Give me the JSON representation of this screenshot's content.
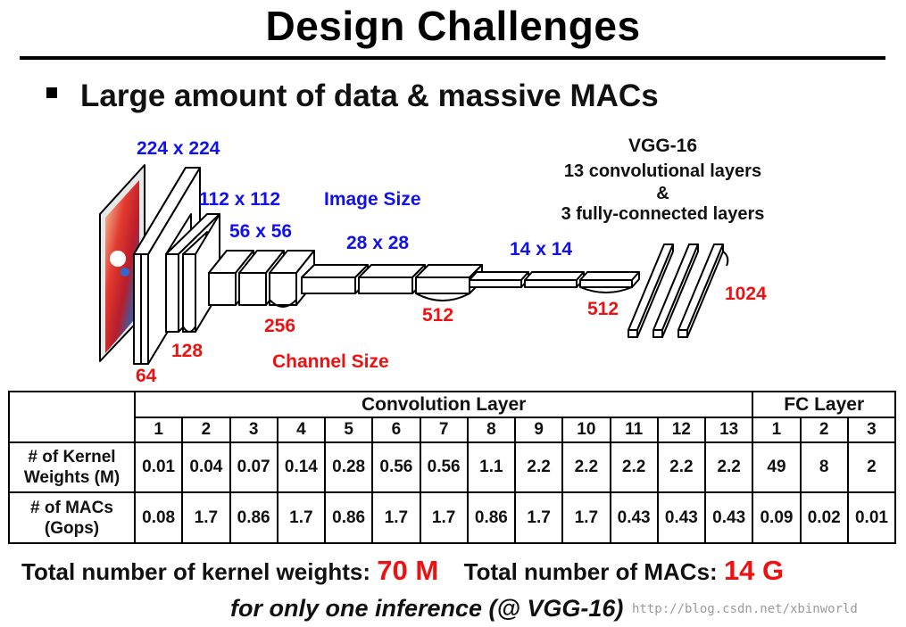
{
  "slide": {
    "title": "Design Challenges",
    "bullet": "Large amount of data & massive MACs"
  },
  "diagram": {
    "image_sizes": [
      "224 x 224",
      "112 x 112",
      "56 x 56",
      "28 x 28",
      "14 x 14"
    ],
    "image_size_label": "Image Size",
    "channel_sizes": [
      "64",
      "128",
      "256",
      "512",
      "512",
      "1024"
    ],
    "channel_size_label": "Channel Size",
    "network": {
      "name": "VGG-16",
      "line1": "13 convolutional layers",
      "line2": "&",
      "line3": "3 fully-connected layers"
    },
    "colors": {
      "image_size": "#1111ee",
      "channel_size": "#ee1111"
    }
  },
  "table": {
    "group_headers": {
      "conv": "Convolution Layer",
      "fc": "FC Layer"
    },
    "conv_layers": [
      "1",
      "2",
      "3",
      "4",
      "5",
      "6",
      "7",
      "8",
      "9",
      "10",
      "11",
      "12",
      "13"
    ],
    "fc_layers": [
      "1",
      "2",
      "3"
    ],
    "rows": [
      {
        "label_line1": "# of Kernel",
        "label_line2": "Weights (M)",
        "values": [
          "0.01",
          "0.04",
          "0.07",
          "0.14",
          "0.28",
          "0.56",
          "0.56",
          "1.1",
          "2.2",
          "2.2",
          "2.2",
          "2.2",
          "2.2",
          "49",
          "8",
          "2"
        ]
      },
      {
        "label_line1": "# of MACs",
        "label_line2": "(Gops)",
        "values": [
          "0.08",
          "1.7",
          "0.86",
          "1.7",
          "0.86",
          "1.7",
          "1.7",
          "0.86",
          "1.7",
          "1.7",
          "0.43",
          "0.43",
          "0.43",
          "0.09",
          "0.02",
          "0.01"
        ]
      }
    ]
  },
  "totals": {
    "weights_label": "Total number of kernel weights:",
    "weights_value": "70 M",
    "macs_label": "Total number of MACs:",
    "macs_value": "14 G",
    "footnote": "for only one inference (@ VGG-16)"
  },
  "watermark": "http://blog.csdn.net/xbinworld"
}
